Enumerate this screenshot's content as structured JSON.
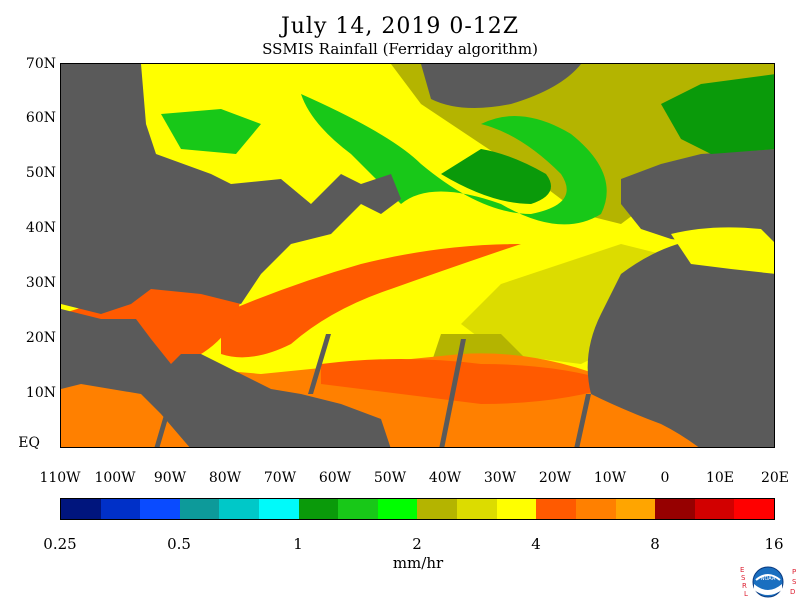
{
  "header": {
    "title": "July 14, 2019 0-12Z",
    "subtitle": "SSMIS Rainfall (Ferriday algorithm)"
  },
  "map": {
    "lat_labels": [
      "70N",
      "60N",
      "50N",
      "40N",
      "30N",
      "20N",
      "10N",
      "EQ"
    ],
    "lon_labels": [
      "110W",
      "100W",
      "90W",
      "80W",
      "70W",
      "60W",
      "50W",
      "40W",
      "30W",
      "20W",
      "10W",
      "0",
      "10E",
      "20E"
    ],
    "land_color": "#5a5a5a"
  },
  "colorbar": {
    "colors": [
      "#00157d",
      "#0030c8",
      "#0a4bff",
      "#0d9a9a",
      "#00c8c8",
      "#00fafa",
      "#0a9a0a",
      "#18c818",
      "#00ff00",
      "#b4b400",
      "#dcdc00",
      "#ffff00",
      "#ff5a00",
      "#ff8000",
      "#ffa500",
      "#960000",
      "#d20000",
      "#ff0000"
    ],
    "tick_labels": [
      "0.25",
      "0.5",
      "1",
      "2",
      "4",
      "8",
      "16"
    ],
    "units": "mm/hr"
  },
  "logo": {
    "left_letters": [
      "E",
      "S",
      "R",
      "L"
    ],
    "right_letters": [
      "P",
      "S",
      "D"
    ],
    "center_text": "NOAA"
  }
}
